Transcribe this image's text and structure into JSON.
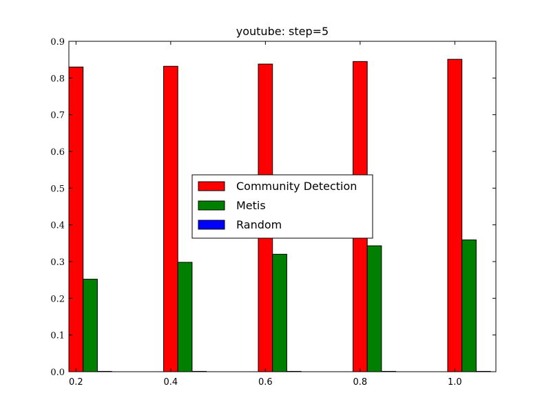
{
  "chart_data": {
    "type": "bar",
    "title": "youtube: step=5",
    "xlabel": "",
    "ylabel": "",
    "categories": [
      "0.2",
      "0.4",
      "0.6",
      "0.8",
      "1.0"
    ],
    "ylim": [
      0,
      0.9
    ],
    "yticks": [
      "0.0",
      "0.1",
      "0.2",
      "0.3",
      "0.4",
      "0.5",
      "0.6",
      "0.7",
      "0.8",
      "0.9"
    ],
    "legend_position": "center",
    "grid": false,
    "series": [
      {
        "name": "Community Detection",
        "color": "#ff0000",
        "values": [
          0.83,
          0.832,
          0.838,
          0.845,
          0.851
        ]
      },
      {
        "name": "Metis",
        "color": "#008000",
        "values": [
          0.252,
          0.298,
          0.32,
          0.343,
          0.359
        ]
      },
      {
        "name": "Random",
        "color": "#0000ff",
        "values": [
          0.001,
          0.001,
          0.001,
          0.001,
          0.001
        ]
      }
    ]
  }
}
